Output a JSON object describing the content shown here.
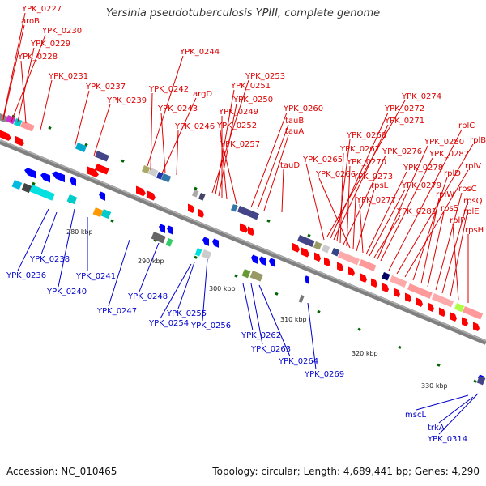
{
  "title": "Yersinia pseudotuberculosis YPIII, complete genome",
  "footer": {
    "accession": "Accession: NC_010465",
    "summary": "Topology: circular; Length: 4,689,441 bp; Genes: 4,290"
  },
  "colors": {
    "forward_label": "#dd0000",
    "reverse_label": "#0000cc",
    "forward_arrow": "#ff0000",
    "reverse_arrow": "#0000ff",
    "backbone": "#808080",
    "tick": "#006600"
  },
  "scale": {
    "unit": "kbp",
    "ticks": [
      "280 kbp",
      "290 kbp",
      "300 kbp",
      "310 kbp",
      "320 kbp",
      "330 kbp"
    ]
  },
  "forward_genes": [
    "YPK_0227",
    "aroB",
    "YPK_0230",
    "YPK_0229",
    "YPK_0228",
    "YPK_0231",
    "YPK_0237",
    "YPK_0239",
    "YPK_0244",
    "YPK_0242",
    "argD",
    "YPK_0243",
    "YPK_0246",
    "YPK_0253",
    "YPK_0251",
    "YPK_0250",
    "YPK_0249",
    "YPK_0252",
    "YPK_0257",
    "YPK_0260",
    "tauB",
    "tauA",
    "tauD",
    "YPK_0274",
    "YPK_0272",
    "YPK_0271",
    "YPK_0268",
    "YPK_0267",
    "YPK_0276",
    "YPK_0265",
    "YPK_0270",
    "YPK_0266",
    "YPK_0273",
    "rpsL",
    "YPK_0277",
    "YPK_0278",
    "YPK_0279",
    "YPK_0281",
    "YPK_0280",
    "YPK_0282",
    "rplC",
    "rplB",
    "rplV",
    "rplD",
    "rplW",
    "rpsS",
    "rpsC",
    "rpsQ",
    "rplE",
    "rplP",
    "rpsH"
  ],
  "reverse_genes": [
    "YPK_0238",
    "YPK_0236",
    "YPK_0241",
    "YPK_0240",
    "YPK_0248",
    "YPK_0247",
    "YPK_0255",
    "YPK_0254",
    "YPK_0256",
    "YPK_0262",
    "YPK_0263",
    "YPK_0264",
    "YPK_0269",
    "mscL",
    "trkA",
    "YPK_0314"
  ]
}
